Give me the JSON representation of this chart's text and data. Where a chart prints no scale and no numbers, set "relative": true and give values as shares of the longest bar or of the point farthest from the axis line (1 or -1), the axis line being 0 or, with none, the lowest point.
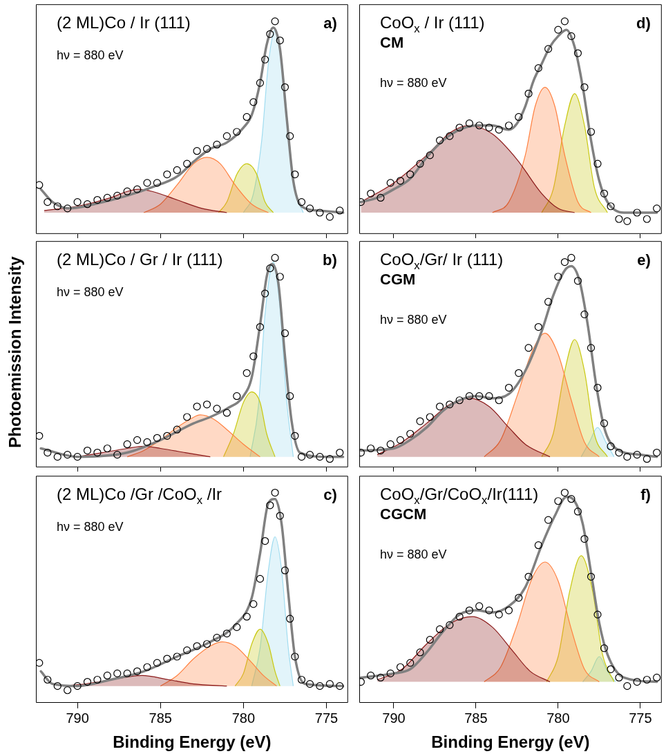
{
  "chart_data": [
    {
      "type": "line",
      "relative": true,
      "title": "(2 ML)Co / Ir (111)",
      "annotations": [
        "hν = 880 eV",
        "a)"
      ],
      "xlim": [
        792.5,
        773.7
      ],
      "xticks": [
        790,
        785,
        780,
        775
      ],
      "tick_labels": false,
      "series": [
        {
          "type": "scatter",
          "marker": "circle",
          "color": "#000000",
          "x": [
            792.3,
            791.8,
            791.2,
            790.6,
            790,
            789.4,
            788.8,
            788.2,
            787.6,
            787,
            786.4,
            785.8,
            785.2,
            784.6,
            784,
            783.4,
            782.8,
            782.2,
            781.6,
            781,
            780.4,
            779.8,
            779.4,
            779,
            778.7,
            778.4,
            778.1,
            777.8,
            777.5,
            777.2,
            776.9,
            776.5,
            776,
            775.4,
            774.8,
            774.2
          ],
          "values": [
            0.23,
            0.15,
            0.13,
            0.12,
            0.15,
            0.14,
            0.16,
            0.17,
            0.18,
            0.2,
            0.21,
            0.24,
            0.24,
            0.28,
            0.3,
            0.33,
            0.39,
            0.4,
            0.42,
            0.46,
            0.48,
            0.55,
            0.62,
            0.71,
            0.82,
            0.94,
            1.0,
            0.91,
            0.69,
            0.46,
            0.28,
            0.15,
            0.12,
            0.1,
            0.08,
            0.11
          ]
        },
        {
          "type": "line",
          "color": "#808080",
          "x": [
            792.2,
            791.5,
            790.5,
            789,
            787,
            785.5,
            784,
            783,
            782,
            781,
            780,
            779.5,
            779,
            778.6,
            778.2,
            777.8,
            777.4,
            777,
            776.5,
            775.5,
            774
          ],
          "values": [
            0.21,
            0.15,
            0.12,
            0.14,
            0.18,
            0.22,
            0.27,
            0.34,
            0.4,
            0.43,
            0.5,
            0.56,
            0.71,
            0.89,
            0.97,
            0.87,
            0.55,
            0.25,
            0.13,
            0.11,
            0.1
          ]
        },
        {
          "type": "area",
          "color": "#8b1a1a",
          "x": [
            792,
            790,
            788,
            787,
            786.3,
            785.5,
            784,
            782.5,
            781
          ],
          "values": [
            0.11,
            0.13,
            0.17,
            0.2,
            0.21,
            0.2,
            0.16,
            0.12,
            0.1
          ]
        },
        {
          "type": "area",
          "color": "#ff8040",
          "x": [
            786,
            785,
            784,
            783,
            782.2,
            781.4,
            780.5,
            779.5,
            778.5
          ],
          "values": [
            0.1,
            0.14,
            0.23,
            0.33,
            0.36,
            0.33,
            0.23,
            0.14,
            0.1
          ]
        },
        {
          "type": "area",
          "color": "#c8c810",
          "x": [
            781.5,
            781,
            780.4,
            779.8,
            779.2,
            778.7,
            778.2
          ],
          "values": [
            0.1,
            0.15,
            0.28,
            0.33,
            0.28,
            0.15,
            0.1
          ]
        },
        {
          "type": "area",
          "color": "#a0dcf0",
          "x": [
            780,
            779.4,
            778.9,
            778.5,
            778.1,
            777.7,
            777.3,
            776.9,
            776.4
          ],
          "values": [
            0.1,
            0.19,
            0.44,
            0.8,
            0.96,
            0.82,
            0.48,
            0.21,
            0.1
          ]
        }
      ]
    },
    {
      "type": "line",
      "relative": true,
      "title": "(2 ML)Co / Gr / Ir (111)",
      "ylabel": "Photoemission Intensity",
      "annotations": [
        "hν = 880 eV",
        "b)"
      ],
      "xlim": [
        792.5,
        773.7
      ],
      "xticks": [
        790,
        785,
        780,
        775
      ],
      "tick_labels": false,
      "series": [
        {
          "type": "scatter",
          "marker": "circle",
          "color": "#000000",
          "x": [
            792.3,
            791.8,
            791.2,
            790.6,
            790,
            789.4,
            788.8,
            788.2,
            787.6,
            787,
            786.4,
            785.8,
            785.2,
            784.6,
            784,
            783.4,
            782.8,
            782.2,
            781.6,
            781,
            780.4,
            779.8,
            779.4,
            779,
            778.7,
            778.4,
            778.1,
            777.8,
            777.5,
            777.2,
            776.9,
            776.5,
            776,
            775.4,
            774.8,
            774.2
          ],
          "values": [
            0.15,
            0.07,
            0.05,
            0.06,
            0.05,
            0.08,
            0.07,
            0.09,
            0.06,
            0.11,
            0.13,
            0.12,
            0.14,
            0.15,
            0.18,
            0.24,
            0.29,
            0.3,
            0.28,
            0.26,
            0.34,
            0.45,
            0.53,
            0.67,
            0.83,
            0.95,
            1.0,
            0.91,
            0.64,
            0.34,
            0.15,
            0.05,
            0.06,
            0.05,
            0.04,
            0.07
          ]
        },
        {
          "type": "line",
          "color": "#808080",
          "x": [
            792.2,
            790,
            787,
            785,
            783,
            782,
            781,
            780,
            779.5,
            779,
            778.6,
            778.3,
            777.9,
            777.5,
            777.1,
            776.6,
            775,
            774
          ],
          "values": [
            0.09,
            0.05,
            0.07,
            0.13,
            0.21,
            0.24,
            0.28,
            0.34,
            0.43,
            0.68,
            0.91,
            0.97,
            0.88,
            0.53,
            0.22,
            0.07,
            0.05,
            0.05
          ]
        },
        {
          "type": "area",
          "color": "#8b1a1a",
          "x": [
            790,
            788.5,
            787,
            786,
            785,
            783.5,
            782
          ],
          "values": [
            0.05,
            0.07,
            0.09,
            0.1,
            0.09,
            0.07,
            0.05
          ]
        },
        {
          "type": "area",
          "color": "#ff8040",
          "x": [
            787,
            786,
            785,
            784,
            783.2,
            782.6,
            781.8,
            781,
            780,
            779
          ],
          "values": [
            0.05,
            0.08,
            0.13,
            0.19,
            0.23,
            0.25,
            0.23,
            0.18,
            0.11,
            0.05
          ]
        },
        {
          "type": "area",
          "color": "#c8c810",
          "x": [
            781.2,
            780.6,
            780,
            779.5,
            779,
            778.6,
            778.1
          ],
          "values": [
            0.05,
            0.16,
            0.31,
            0.36,
            0.31,
            0.16,
            0.05
          ]
        },
        {
          "type": "area",
          "color": "#a0dcf0",
          "x": [
            779.6,
            779.1,
            778.7,
            778.2,
            777.8,
            777.4,
            777
          ],
          "values": [
            0.05,
            0.29,
            0.73,
            0.98,
            0.76,
            0.32,
            0.05
          ]
        }
      ]
    },
    {
      "type": "line",
      "relative": true,
      "title": "(2 ML)Co /Gr /CoO$_{x}$ /Ir",
      "xlabel": "Binding Energy (eV)",
      "annotations": [
        "hν = 880 eV",
        "c)"
      ],
      "xlim": [
        792.5,
        773.7
      ],
      "xticks": [
        790,
        785,
        780,
        775
      ],
      "tick_labels": "x",
      "series": [
        {
          "type": "scatter",
          "marker": "circle",
          "color": "#000000",
          "x": [
            792.3,
            791.8,
            791.2,
            790.6,
            790,
            789.4,
            788.8,
            788.2,
            787.6,
            787,
            786.4,
            785.8,
            785.2,
            784.6,
            784,
            783.4,
            782.8,
            782.2,
            781.6,
            781,
            780.4,
            779.8,
            779.4,
            779,
            778.7,
            778.4,
            778.1,
            777.8,
            777.5,
            777.2,
            776.9,
            776.5,
            776,
            775.4,
            774.8,
            774.2
          ],
          "values": [
            0.19,
            0.11,
            0.08,
            0.06,
            0.08,
            0.1,
            0.11,
            0.13,
            0.14,
            0.14,
            0.15,
            0.17,
            0.19,
            0.21,
            0.22,
            0.25,
            0.27,
            0.28,
            0.31,
            0.33,
            0.36,
            0.41,
            0.47,
            0.59,
            0.77,
            0.94,
            1.0,
            0.89,
            0.63,
            0.4,
            0.22,
            0.11,
            0.09,
            0.08,
            0.09,
            0.08
          ]
        },
        {
          "type": "line",
          "color": "#808080",
          "x": [
            792.2,
            791.5,
            790,
            788,
            786,
            784,
            782,
            780.5,
            779.5,
            779,
            778.5,
            778.1,
            777.7,
            777.3,
            776.9,
            776.3,
            774
          ],
          "values": [
            0.15,
            0.09,
            0.08,
            0.11,
            0.15,
            0.22,
            0.29,
            0.37,
            0.5,
            0.71,
            0.95,
            0.97,
            0.85,
            0.52,
            0.22,
            0.09,
            0.08
          ]
        },
        {
          "type": "area",
          "color": "#8b1a1a",
          "x": [
            791,
            789.5,
            788,
            786.1,
            784.5,
            783,
            781
          ],
          "values": [
            0.08,
            0.09,
            0.11,
            0.13,
            0.11,
            0.09,
            0.08
          ]
        },
        {
          "type": "area",
          "color": "#ff8040",
          "x": [
            785,
            784,
            783,
            782,
            781.3,
            780.5,
            779.6,
            778.8,
            778
          ],
          "values": [
            0.08,
            0.13,
            0.21,
            0.27,
            0.29,
            0.27,
            0.2,
            0.13,
            0.08
          ]
        },
        {
          "type": "area",
          "color": "#c8c810",
          "x": [
            780.5,
            780,
            779.5,
            779,
            778.5,
            778.1,
            777.8
          ],
          "values": [
            0.08,
            0.14,
            0.28,
            0.35,
            0.28,
            0.15,
            0.08
          ]
        },
        {
          "type": "area",
          "color": "#a0dcf0",
          "x": [
            779.5,
            779,
            778.5,
            778.1,
            777.7,
            777.3,
            777
          ],
          "values": [
            0.08,
            0.26,
            0.63,
            0.79,
            0.63,
            0.26,
            0.08
          ]
        }
      ]
    },
    {
      "type": "line",
      "relative": true,
      "title": "CoO$_{x}$ / Ir (111)",
      "subtitle": "CM",
      "annotations": [
        "hν = 880 eV",
        "d)"
      ],
      "xlim": [
        792.1,
        773.7
      ],
      "xticks": [
        790,
        785,
        780,
        775
      ],
      "tick_labels": false,
      "series": [
        {
          "type": "scatter",
          "marker": "circle",
          "color": "#000000",
          "x": [
            792,
            791.4,
            790.8,
            790.2,
            789.6,
            789,
            788.4,
            787.8,
            787.2,
            786.6,
            786,
            785.4,
            784.8,
            784.2,
            783.6,
            783,
            782.4,
            781.8,
            781.2,
            780.6,
            780,
            779.6,
            779.2,
            778.8,
            778.4,
            778,
            777.6,
            777.2,
            776.8,
            776.3,
            775.8,
            775.2,
            774.6,
            774
          ],
          "values": [
            0.15,
            0.19,
            0.17,
            0.24,
            0.25,
            0.28,
            0.33,
            0.37,
            0.44,
            0.46,
            0.5,
            0.52,
            0.51,
            0.5,
            0.49,
            0.51,
            0.55,
            0.66,
            0.78,
            0.87,
            0.96,
            1.0,
            0.93,
            0.85,
            0.69,
            0.48,
            0.33,
            0.19,
            0.13,
            0.07,
            0.06,
            0.1,
            0.07,
            0.12
          ]
        },
        {
          "type": "line",
          "color": "#808080",
          "x": [
            792,
            791,
            790,
            789,
            788,
            787,
            786,
            785,
            784,
            783,
            782.5,
            782,
            781.5,
            781,
            780.5,
            780,
            779.5,
            779,
            778.5,
            778,
            777.5,
            777,
            776,
            774
          ],
          "values": [
            0.15,
            0.17,
            0.21,
            0.26,
            0.36,
            0.44,
            0.49,
            0.51,
            0.51,
            0.49,
            0.52,
            0.6,
            0.72,
            0.8,
            0.88,
            0.93,
            0.96,
            0.88,
            0.69,
            0.44,
            0.25,
            0.15,
            0.1,
            0.1
          ]
        },
        {
          "type": "area",
          "color": "#8b1a1a",
          "x": [
            792,
            790,
            788,
            786.5,
            785.4,
            784,
            782.5,
            781,
            780,
            779
          ],
          "values": [
            0.15,
            0.24,
            0.37,
            0.48,
            0.51,
            0.47,
            0.35,
            0.19,
            0.12,
            0.1
          ]
        },
        {
          "type": "area",
          "color": "#ff8040",
          "x": [
            784,
            783,
            782,
            781.4,
            780.8,
            780.2,
            779.6,
            778.8,
            778
          ],
          "values": [
            0.1,
            0.15,
            0.37,
            0.6,
            0.69,
            0.6,
            0.37,
            0.15,
            0.1
          ]
        },
        {
          "type": "area",
          "color": "#c8c810",
          "x": [
            781,
            780.3,
            779.6,
            779,
            778.4,
            777.8,
            777
          ],
          "values": [
            0.1,
            0.21,
            0.51,
            0.66,
            0.51,
            0.22,
            0.1
          ]
        }
      ]
    },
    {
      "type": "line",
      "relative": true,
      "title": "CoO$_{x}$/Gr/ Ir (111)",
      "subtitle": "CGM",
      "annotations": [
        "hν = 880 eV",
        "e)"
      ],
      "xlim": [
        792.1,
        773.7
      ],
      "xticks": [
        790,
        785,
        780,
        775
      ],
      "tick_labels": false,
      "series": [
        {
          "type": "scatter",
          "marker": "circle",
          "color": "#000000",
          "x": [
            792,
            791.4,
            790.8,
            790.2,
            789.6,
            789,
            788.4,
            787.8,
            787.2,
            786.6,
            786,
            785.4,
            784.8,
            784.2,
            783.6,
            783,
            782.4,
            781.8,
            781.2,
            780.6,
            780,
            779.6,
            779.2,
            778.8,
            778.4,
            778,
            777.6,
            777.2,
            776.8,
            776.3,
            775.8,
            775.2,
            774.6,
            774
          ],
          "values": [
            0.07,
            0.09,
            0.08,
            0.11,
            0.13,
            0.16,
            0.22,
            0.24,
            0.29,
            0.3,
            0.32,
            0.34,
            0.34,
            0.34,
            0.32,
            0.38,
            0.45,
            0.57,
            0.67,
            0.79,
            0.91,
            0.98,
            1.0,
            0.89,
            0.73,
            0.57,
            0.38,
            0.21,
            0.1,
            0.07,
            0.05,
            0.06,
            0.04,
            0.07
          ]
        },
        {
          "type": "line",
          "color": "#808080",
          "x": [
            792,
            790,
            789,
            788,
            787,
            786,
            785,
            784,
            783,
            782,
            781,
            780.3,
            779.6,
            779.2,
            778.7,
            778.2,
            777.7,
            777.2,
            776.5,
            775,
            774
          ],
          "values": [
            0.08,
            0.09,
            0.13,
            0.19,
            0.27,
            0.32,
            0.34,
            0.33,
            0.35,
            0.46,
            0.65,
            0.82,
            0.94,
            0.96,
            0.89,
            0.68,
            0.4,
            0.19,
            0.09,
            0.06,
            0.05
          ]
        },
        {
          "type": "area",
          "color": "#8b1a1a",
          "x": [
            791,
            789.5,
            788,
            786.6,
            785.4,
            784.2,
            783,
            782,
            780.5
          ],
          "values": [
            0.06,
            0.12,
            0.21,
            0.3,
            0.33,
            0.29,
            0.19,
            0.11,
            0.05
          ]
        },
        {
          "type": "area",
          "color": "#ff8040",
          "x": [
            784.5,
            783.5,
            782.5,
            781.6,
            780.8,
            780,
            779.2,
            778.4,
            777.5
          ],
          "values": [
            0.05,
            0.13,
            0.34,
            0.55,
            0.64,
            0.54,
            0.32,
            0.12,
            0.05
          ]
        },
        {
          "type": "area",
          "color": "#c8c810",
          "x": [
            781,
            780.3,
            779.6,
            779,
            778.4,
            777.8,
            777
          ],
          "values": [
            0.05,
            0.16,
            0.46,
            0.61,
            0.46,
            0.16,
            0.05
          ]
        },
        {
          "type": "area",
          "color": "#a0dcf0",
          "x": [
            778.6,
            778.1,
            777.6,
            777.1,
            776.6
          ],
          "values": [
            0.05,
            0.12,
            0.19,
            0.12,
            0.05
          ]
        }
      ]
    },
    {
      "type": "line",
      "relative": true,
      "title": "CoO$_{x}$/Gr/CoO$_{x}$/Ir(111)",
      "subtitle": "CGCM",
      "xlabel": "Binding Energy (eV)",
      "annotations": [
        "hν = 880 eV",
        "f)"
      ],
      "xlim": [
        792.1,
        773.7
      ],
      "xticks": [
        790,
        785,
        780,
        775
      ],
      "tick_labels": "x",
      "series": [
        {
          "type": "scatter",
          "marker": "circle",
          "color": "#000000",
          "x": [
            792,
            791.4,
            790.8,
            790.2,
            789.6,
            789,
            788.4,
            787.8,
            787.2,
            786.6,
            786,
            785.4,
            784.8,
            784.2,
            783.6,
            783,
            782.4,
            781.8,
            781.2,
            780.6,
            780,
            779.6,
            779.2,
            778.8,
            778.4,
            778,
            777.6,
            777.2,
            776.8,
            776.3,
            775.8,
            775.2,
            774.6,
            774
          ],
          "values": [
            0.1,
            0.13,
            0.12,
            0.14,
            0.17,
            0.19,
            0.24,
            0.3,
            0.35,
            0.37,
            0.41,
            0.44,
            0.46,
            0.44,
            0.42,
            0.44,
            0.5,
            0.6,
            0.75,
            0.87,
            0.96,
            1.0,
            0.97,
            0.91,
            0.78,
            0.6,
            0.42,
            0.26,
            0.16,
            0.12,
            0.08,
            0.1,
            0.11,
            0.12
          ]
        },
        {
          "type": "line",
          "color": "#808080",
          "x": [
            792,
            790,
            789,
            788,
            787,
            786,
            785,
            784,
            783,
            782,
            781,
            780.2,
            779.5,
            779,
            778.5,
            778,
            777.5,
            777,
            776,
            774
          ],
          "values": [
            0.12,
            0.14,
            0.16,
            0.24,
            0.34,
            0.42,
            0.44,
            0.43,
            0.46,
            0.55,
            0.75,
            0.89,
            0.98,
            0.96,
            0.85,
            0.62,
            0.38,
            0.23,
            0.12,
            0.1
          ]
        },
        {
          "type": "area",
          "color": "#8b1a1a",
          "x": [
            791,
            789.5,
            788,
            786.5,
            785.2,
            784,
            782.8,
            781.7,
            780.5
          ],
          "values": [
            0.11,
            0.16,
            0.28,
            0.38,
            0.41,
            0.36,
            0.25,
            0.15,
            0.1
          ]
        },
        {
          "type": "area",
          "color": "#ff8040",
          "x": [
            784.5,
            783.5,
            782.5,
            781.6,
            780.8,
            780,
            779.2,
            778.4,
            777.5
          ],
          "values": [
            0.1,
            0.17,
            0.37,
            0.59,
            0.67,
            0.58,
            0.35,
            0.16,
            0.1
          ]
        },
        {
          "type": "area",
          "color": "#c8c810",
          "x": [
            780.7,
            780,
            779.3,
            778.6,
            777.9,
            777.3,
            776.6
          ],
          "values": [
            0.1,
            0.22,
            0.53,
            0.7,
            0.53,
            0.23,
            0.1
          ]
        },
        {
          "type": "area",
          "color": "#a0dcf0",
          "x": [
            778.5,
            778,
            777.5,
            777,
            776.5
          ],
          "values": [
            0.1,
            0.15,
            0.22,
            0.15,
            0.1
          ]
        }
      ]
    }
  ]
}
